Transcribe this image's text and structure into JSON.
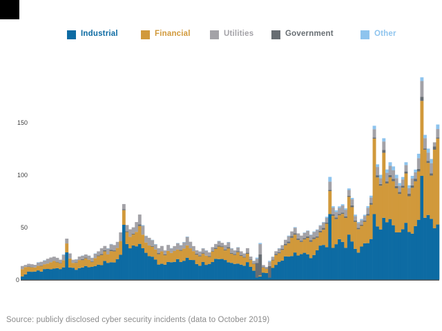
{
  "page": {
    "background": "#ffffff"
  },
  "logo": {
    "color": "#000000"
  },
  "legend": {
    "items": [
      {
        "label": "Industrial",
        "color": "#0d6ba3"
      },
      {
        "label": "Financial",
        "color": "#d1993b"
      },
      {
        "label": "Utilities",
        "color": "#a3a2a7"
      },
      {
        "label": "Government",
        "color": "#676d72"
      },
      {
        "label": "Other",
        "color": "#8ec4ee"
      }
    ]
  },
  "caption": {
    "text": "Source: publicly disclosed cyber security incidents (data to October 2019)"
  },
  "chart_data": {
    "type": "bar",
    "stacked": true,
    "title": "",
    "xlabel": "",
    "ylabel": "",
    "x_count": 132,
    "ylim": [
      0,
      200
    ],
    "yticks": [
      0,
      50,
      100,
      150
    ],
    "grid": false,
    "legend_position": "top",
    "series": [
      {
        "name": "Industrial",
        "color": "#0d6ba3",
        "values": [
          3,
          5,
          7.7,
          7.5,
          7.7,
          8.8,
          7.7,
          10.1,
          10.2,
          9.9,
          10.5,
          11.0,
          10.1,
          11.7,
          26,
          11.6,
          11.3,
          9.4,
          11.0,
          11.6,
          13.0,
          11.8,
          12.2,
          13.0,
          14.3,
          13.8,
          17.8,
          16.0,
          16.6,
          16.4,
          19.6,
          23.7,
          52.3,
          34.0,
          29.9,
          32.6,
          31.8,
          34.1,
          30.0,
          25.6,
          22.4,
          21.9,
          19.1,
          14.4,
          15.1,
          14.3,
          16.9,
          16.6,
          16.9,
          19.6,
          16.8,
          18.0,
          20.9,
          18.8,
          18.7,
          14.9,
          13.3,
          16.8,
          14.1,
          15.0,
          16.8,
          19.8,
          19.6,
          19.7,
          18.7,
          16.5,
          16.0,
          15.0,
          15.3,
          14.3,
          13.3,
          16.7,
          12.2,
          8.5,
          2,
          3,
          6.6,
          6.3,
          2,
          11.2,
          14.1,
          17.0,
          18.2,
          22.2,
          22.0,
          22.5,
          25.9,
          23.0,
          24.3,
          25.6,
          24.2,
          20.6,
          23.5,
          28.0,
          32.5,
          33.1,
          30.9,
          62.5,
          30.3,
          33.8,
          38.6,
          36.0,
          30.4,
          43,
          36.4,
          29.4,
          25.8,
          31.6,
          34.7,
          34.8,
          38.7,
          62.5,
          50.8,
          47.9,
          59,
          54.8,
          57.8,
          51.9,
          45.1,
          45.1,
          48.1,
          54.2,
          45.4,
          43.9,
          51.1,
          57.1,
          99,
          59,
          61.7,
          58.0,
          49,
          52.6
        ]
      },
      {
        "name": "Financial",
        "color": "#d1993b",
        "values": [
          7,
          7,
          4.4,
          4.2,
          4.0,
          4.3,
          5.4,
          4.6,
          5.1,
          6.7,
          7.3,
          5.5,
          5.4,
          6.8,
          8.5,
          8.6,
          4.7,
          6.6,
          7.7,
          7.1,
          7.3,
          7.2,
          4.7,
          7.5,
          8.1,
          9.6,
          9.2,
          8.0,
          10.6,
          10.6,
          10.6,
          13.1,
          14.0,
          11.4,
          11.0,
          10.5,
          13.7,
          17.0,
          12.9,
          9.8,
          10.2,
          9.4,
          9.7,
          9.9,
          11.9,
          9.0,
          10.5,
          8.9,
          10.4,
          9.1,
          10.8,
          11.7,
          11.8,
          11.1,
          8.5,
          8.9,
          8.9,
          8.0,
          8.8,
          6.7,
          10.0,
          9.5,
          11.9,
          11.3,
          9.2,
          13.2,
          8.7,
          8.5,
          10.9,
          8.4,
          7.8,
          8.0,
          6.5,
          6.4,
          0,
          1,
          5.0,
          3.9,
          0,
          7.2,
          9.3,
          8.2,
          10.2,
          10.6,
          12.7,
          17.4,
          17.0,
          14.9,
          11.7,
          12.8,
          15.6,
          15.4,
          15.2,
          12.1,
          12.6,
          14.5,
          22.4,
          22,
          30.6,
          23.9,
          22.8,
          26.7,
          28.5,
          36,
          32.7,
          25.8,
          22.3,
          19.7,
          20.5,
          26.4,
          32.8,
          72,
          46.7,
          41.7,
          62,
          37.0,
          39.9,
          42.0,
          42.1,
          36.6,
          39.6,
          47.1,
          34.2,
          43.7,
          42.7,
          46.2,
          71.5,
          65,
          49.6,
          41.3,
          75,
          82
        ]
      },
      {
        "name": "Government",
        "color": "#676d72",
        "values": [
          0,
          0,
          0.5,
          0.4,
          0.0,
          0.0,
          0.5,
          0.0,
          0.0,
          0.0,
          0.0,
          0.5,
          0.5,
          0.0,
          0,
          0.0,
          0.0,
          0.5,
          0.0,
          0.8,
          0.7,
          0.0,
          0.6,
          0.0,
          0.8,
          1.1,
          1.1,
          0.0,
          1.3,
          0.9,
          0.0,
          0.0,
          0.8,
          0.8,
          0.0,
          0.8,
          0.0,
          1.6,
          0.0,
          0.0,
          0.0,
          0.7,
          0.0,
          1.0,
          0.0,
          0.9,
          0.0,
          0.0,
          0.0,
          0.0,
          0.8,
          0.0,
          0.0,
          0.0,
          0.0,
          0.9,
          0.8,
          0.8,
          0.0,
          0.7,
          0.7,
          0.9,
          1.0,
          0.8,
          0.9,
          1.3,
          0.8,
          0.9,
          1.0,
          0.7,
          0.7,
          0.9,
          0.6,
          0.5,
          14,
          20,
          0.5,
          0.3,
          11,
          0.6,
          1.0,
          0.9,
          1.0,
          1.3,
          1.6,
          1.7,
          1.3,
          1.4,
          1.1,
          1.2,
          1.5,
          1.5,
          1.4,
          1.2,
          1.3,
          1.7,
          1.2,
          1,
          1.5,
          1.6,
          1.3,
          1.2,
          1.5,
          1,
          1.7,
          1.2,
          1.2,
          1.0,
          1.1,
          1.3,
          1.6,
          1,
          2.1,
          1.6,
          2.8,
          1.9,
          2.0,
          2.3,
          2.0,
          1.9,
          1.8,
          1.9,
          2.3,
          2.3,
          2.5,
          2.4,
          4,
          1,
          2.0,
          2.0,
          3,
          1.1
        ]
      },
      {
        "name": "Utilities",
        "color": "#a3a2a7",
        "values": [
          3,
          2,
          2.5,
          2.6,
          2.4,
          3.1,
          3.4,
          3.4,
          4.6,
          4.5,
          4.1,
          3.8,
          3.0,
          5.1,
          4.6,
          4.8,
          3.0,
          2.8,
          3.3,
          3.3,
          3.0,
          3.8,
          3.2,
          4.2,
          3.8,
          5.4,
          4.0,
          5.6,
          5.2,
          5.1,
          5.8,
          8.3,
          5.0,
          5.9,
          7.1,
          6.0,
          9.4,
          9.4,
          8.5,
          6.1,
          7.3,
          5.7,
          4.7,
          4.7,
          5.1,
          3.7,
          5.7,
          4.3,
          4.7,
          6.0,
          4.3,
          5.8,
          8.0,
          6.2,
          4.8,
          3.3,
          3.8,
          4.2,
          4.7,
          3.6,
          3.5,
          3.8,
          4.2,
          3.3,
          4.2,
          4.5,
          4.2,
          3.5,
          3.5,
          3.6,
          3.2,
          4.4,
          2.7,
          2.4,
          4,
          10,
          1.8,
          1.6,
          4,
          2.7,
          2.7,
          3.6,
          3.5,
          3.9,
          5.1,
          4.4,
          5.3,
          4.8,
          4.9,
          5.0,
          5.2,
          5.1,
          5.4,
          6.1,
          5.1,
          5.2,
          4.4,
          8,
          6.3,
          5.3,
          5.7,
          6.8,
          6.3,
          5.5,
          5.8,
          4.2,
          4.7,
          4.3,
          4.5,
          6.0,
          5.3,
          8,
          7.9,
          5.6,
          8,
          8.2,
          8.9,
          8.1,
          7.6,
          6.0,
          6.1,
          6.1,
          5.5,
          6.5,
          6.0,
          10.2,
          15,
          10,
          7.8,
          9.8,
          4,
          8
        ]
      },
      {
        "name": "Other",
        "color": "#8ec4ee",
        "values": [
          0,
          0,
          0.0,
          0.0,
          0.0,
          0.4,
          0.0,
          0.4,
          0.0,
          0.0,
          0.0,
          0.0,
          0.0,
          0.5,
          0,
          0.0,
          0.0,
          0.2,
          0.0,
          0.2,
          0.0,
          0.2,
          0.2,
          0.3,
          0.0,
          0.0,
          0.0,
          0.3,
          0.3,
          0.0,
          0.0,
          0.0,
          0.0,
          0.0,
          0.0,
          0.0,
          0.0,
          0.0,
          0.6,
          0.4,
          0.0,
          0.3,
          0.4,
          0.0,
          0.0,
          0.0,
          0.0,
          0.3,
          0.0,
          0.3,
          0.3,
          0.4,
          0.4,
          0.0,
          0.0,
          0.0,
          0.2,
          0.2,
          0.3,
          0.0,
          0.0,
          0.0,
          0.3,
          0.0,
          0.0,
          0.4,
          0.3,
          0.0,
          0.3,
          0.0,
          0.0,
          0.0,
          0.0,
          0.2,
          1,
          1,
          0.0,
          0.0,
          1,
          0.2,
          0.0,
          0.3,
          0.0,
          0.0,
          0.6,
          0.0,
          0.6,
          0.0,
          0.0,
          0.4,
          0.4,
          0.4,
          0.5,
          0.5,
          0.5,
          0.5,
          1.1,
          4.5,
          1.3,
          1.5,
          1.5,
          1.2,
          1.3,
          1.5,
          1.4,
          1.4,
          1.0,
          1.3,
          1.1,
          1.6,
          1.7,
          3.3,
          2.5,
          3.2,
          3.1,
          3.2,
          3.4,
          3.7,
          3.2,
          2.5,
          2.3,
          2.7,
          2.6,
          2.6,
          2.7,
          4.2,
          3.5,
          3.1,
          3.9,
          4.0,
          0,
          4.3
        ]
      }
    ]
  }
}
